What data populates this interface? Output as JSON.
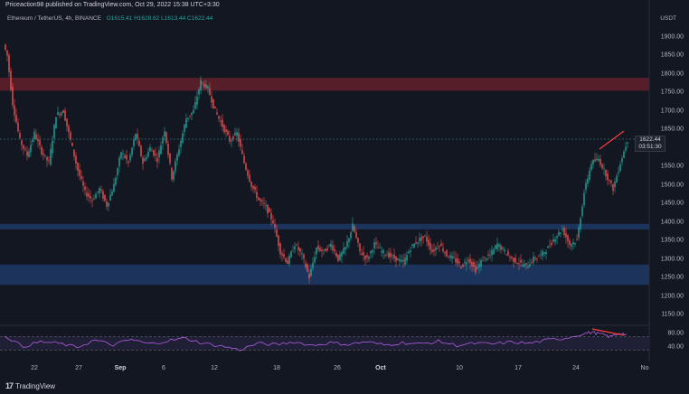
{
  "header": {
    "publish_line": "Priceaction98 published on TradingView.com, Oct 29, 2022 15:38 UTC+3:30",
    "symbol": "Ethereum / TetherUS, 4h, BINANCE",
    "ohlc": "O1615.41 H1628.62 L1613.44 C1622.44",
    "currency": "USDT"
  },
  "price_axis": {
    "labels": [
      "1900.00",
      "1850.00",
      "1800.00",
      "1750.00",
      "1700.00",
      "1650.00",
      "1550.00",
      "1500.00",
      "1450.00",
      "1400.00",
      "1350.00",
      "1300.00",
      "1250.00",
      "1200.00",
      "1150.00"
    ]
  },
  "rsi_axis": {
    "labels": [
      "80.00",
      "40.00"
    ]
  },
  "time_axis": {
    "labels": [
      {
        "t": "22",
        "bold": false
      },
      {
        "t": "27",
        "bold": false
      },
      {
        "t": "Sep",
        "bold": true
      },
      {
        "t": "6",
        "bold": false
      },
      {
        "t": "12",
        "bold": false
      },
      {
        "t": "18",
        "bold": false
      },
      {
        "t": "26",
        "bold": false
      },
      {
        "t": "Oct",
        "bold": true
      },
      {
        "t": "10",
        "bold": false
      },
      {
        "t": "17",
        "bold": false
      },
      {
        "t": "24",
        "bold": false
      },
      {
        "t": "No",
        "bold": false
      }
    ]
  },
  "last_price": {
    "price": "1622.44",
    "countdown": "03:51:30"
  },
  "footer": {
    "brand": "TradingView",
    "logo": "17"
  },
  "colors": {
    "up": "#26a69a",
    "down": "#ef5350",
    "background": "#131722",
    "resistance_zone": "#5d1f2a",
    "support_zone_upper": "#1f3a66",
    "support_zone_lower": "#1f3a66",
    "rsi_line": "#b05de0",
    "divergence_line": "#ff3b3b"
  },
  "chart_data": {
    "type": "candlestick",
    "symbol": "ETH/USDT",
    "interval": "4h",
    "ylim": [
      1150,
      1920
    ],
    "zones": [
      {
        "kind": "resistance",
        "from": 1755,
        "to": 1790
      },
      {
        "kind": "support",
        "from": 1380,
        "to": 1395
      },
      {
        "kind": "support",
        "from": 1230,
        "to": 1285
      }
    ],
    "price_path": [
      [
        0,
        1880
      ],
      [
        2,
        1850
      ],
      [
        5,
        1720
      ],
      [
        9,
        1620
      ],
      [
        13,
        1580
      ],
      [
        17,
        1640
      ],
      [
        21,
        1590
      ],
      [
        25,
        1560
      ],
      [
        29,
        1690
      ],
      [
        33,
        1700
      ],
      [
        37,
        1620
      ],
      [
        41,
        1540
      ],
      [
        45,
        1480
      ],
      [
        49,
        1460
      ],
      [
        53,
        1490
      ],
      [
        57,
        1445
      ],
      [
        61,
        1500
      ],
      [
        65,
        1590
      ],
      [
        69,
        1560
      ],
      [
        73,
        1640
      ],
      [
        77,
        1560
      ],
      [
        81,
        1600
      ],
      [
        85,
        1570
      ],
      [
        89,
        1650
      ],
      [
        93,
        1520
      ],
      [
        97,
        1600
      ],
      [
        101,
        1680
      ],
      [
        105,
        1700
      ],
      [
        109,
        1780
      ],
      [
        113,
        1760
      ],
      [
        117,
        1700
      ],
      [
        121,
        1660
      ],
      [
        125,
        1620
      ],
      [
        129,
        1640
      ],
      [
        133,
        1560
      ],
      [
        137,
        1500
      ],
      [
        141,
        1460
      ],
      [
        145,
        1440
      ],
      [
        149,
        1400
      ],
      [
        153,
        1320
      ],
      [
        157,
        1290
      ],
      [
        161,
        1340
      ],
      [
        165,
        1310
      ],
      [
        169,
        1250
      ],
      [
        173,
        1330
      ],
      [
        177,
        1320
      ],
      [
        181,
        1340
      ],
      [
        185,
        1300
      ],
      [
        189,
        1330
      ],
      [
        193,
        1390
      ],
      [
        197,
        1320
      ],
      [
        201,
        1300
      ],
      [
        205,
        1340
      ],
      [
        209,
        1320
      ],
      [
        213,
        1310
      ],
      [
        217,
        1300
      ],
      [
        221,
        1290
      ],
      [
        225,
        1330
      ],
      [
        229,
        1350
      ],
      [
        233,
        1360
      ],
      [
        237,
        1320
      ],
      [
        241,
        1340
      ],
      [
        245,
        1310
      ],
      [
        249,
        1300
      ],
      [
        253,
        1280
      ],
      [
        257,
        1300
      ],
      [
        261,
        1270
      ],
      [
        265,
        1300
      ],
      [
        269,
        1310
      ],
      [
        273,
        1340
      ],
      [
        277,
        1320
      ],
      [
        281,
        1300
      ],
      [
        285,
        1290
      ],
      [
        289,
        1280
      ],
      [
        293,
        1300
      ],
      [
        297,
        1310
      ],
      [
        301,
        1330
      ],
      [
        305,
        1360
      ],
      [
        309,
        1380
      ],
      [
        313,
        1340
      ],
      [
        317,
        1350
      ],
      [
        321,
        1480
      ],
      [
        325,
        1560
      ],
      [
        329,
        1570
      ],
      [
        333,
        1530
      ],
      [
        337,
        1490
      ],
      [
        341,
        1560
      ],
      [
        345,
        1622
      ]
    ],
    "rsi_path": [
      [
        0,
        75
      ],
      [
        10,
        40
      ],
      [
        20,
        55
      ],
      [
        30,
        50
      ],
      [
        40,
        38
      ],
      [
        50,
        60
      ],
      [
        60,
        45
      ],
      [
        70,
        62
      ],
      [
        80,
        48
      ],
      [
        90,
        58
      ],
      [
        100,
        66
      ],
      [
        110,
        50
      ],
      [
        120,
        42
      ],
      [
        130,
        30
      ],
      [
        140,
        50
      ],
      [
        150,
        46
      ],
      [
        160,
        55
      ],
      [
        170,
        44
      ],
      [
        180,
        52
      ],
      [
        190,
        47
      ],
      [
        200,
        55
      ],
      [
        210,
        45
      ],
      [
        220,
        52
      ],
      [
        230,
        48
      ],
      [
        240,
        56
      ],
      [
        250,
        44
      ],
      [
        260,
        50
      ],
      [
        270,
        48
      ],
      [
        280,
        54
      ],
      [
        290,
        50
      ],
      [
        300,
        60
      ],
      [
        310,
        66
      ],
      [
        320,
        80
      ],
      [
        325,
        84
      ],
      [
        330,
        78
      ],
      [
        335,
        70
      ],
      [
        340,
        82
      ],
      [
        345,
        76
      ]
    ],
    "rsi_bands": [
      70,
      30
    ]
  }
}
